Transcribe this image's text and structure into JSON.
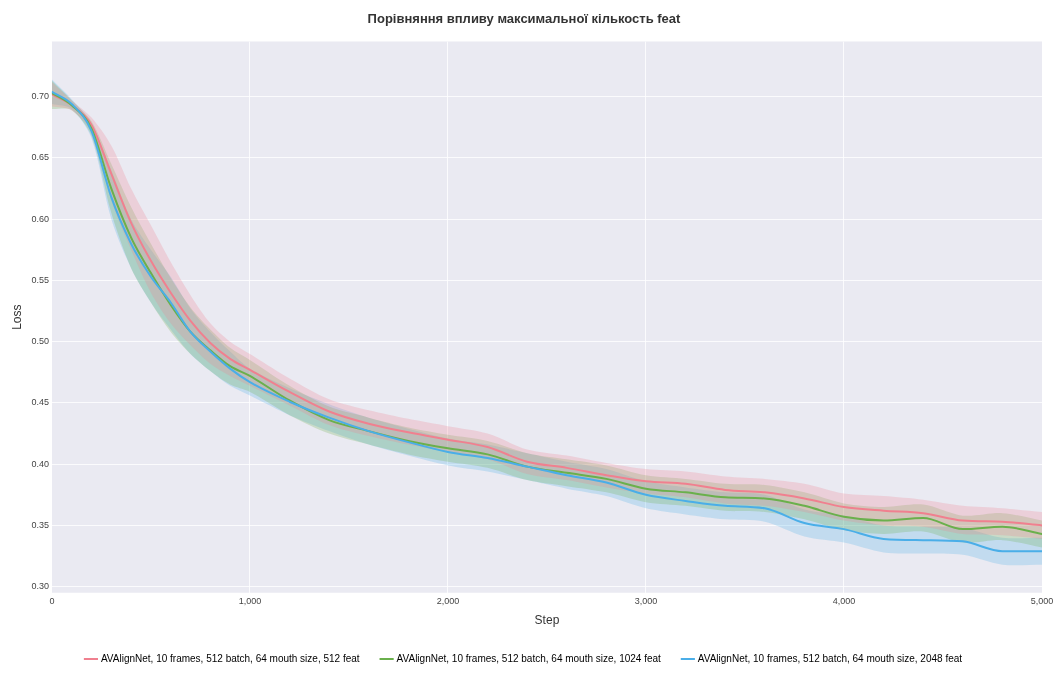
{
  "chart_data": {
    "type": "line",
    "title": "Порівняння впливу максимальної кількость feat",
    "xlabel": "Step",
    "ylabel": "Loss",
    "x": [
      0,
      100,
      200,
      300,
      400,
      500,
      600,
      700,
      800,
      900,
      1000,
      1200,
      1400,
      1600,
      1800,
      2000,
      2200,
      2400,
      2600,
      2800,
      3000,
      3200,
      3400,
      3600,
      3800,
      4000,
      4200,
      4400,
      4600,
      4800,
      5000
    ],
    "xlim": [
      0,
      5000
    ],
    "xticks": [
      0,
      {
        "value": 1000,
        "label": "1,000"
      },
      {
        "value": 2000,
        "label": "2,000"
      },
      {
        "value": 3000,
        "label": "3,000"
      },
      {
        "value": 4000,
        "label": "4,000"
      },
      {
        "value": 5000,
        "label": "5,000"
      }
    ],
    "ylim": [
      0.295,
      0.745
    ],
    "yticks": [
      {
        "value": 0.3,
        "label": "0.30"
      },
      {
        "value": 0.35,
        "label": "0.35"
      },
      {
        "value": 0.4,
        "label": "0.40"
      },
      {
        "value": 0.45,
        "label": "0.45"
      },
      {
        "value": 0.5,
        "label": "0.50"
      },
      {
        "value": 0.55,
        "label": "0.55"
      },
      {
        "value": 0.6,
        "label": "0.60"
      },
      {
        "value": 0.65,
        "label": "0.65"
      },
      {
        "value": 0.7,
        "label": "0.70"
      }
    ],
    "grid": true,
    "legend": "bottom",
    "marker": "none",
    "line_style": "solid",
    "series": [
      {
        "name": "AVAlignNet, 10 frames, 512 batch, 64 mouth size, 512 feat",
        "color": "#f0808f",
        "values": [
          0.702,
          0.693,
          0.677,
          0.637,
          0.597,
          0.566,
          0.54,
          0.517,
          0.499,
          0.486,
          0.477,
          0.459,
          0.443,
          0.433,
          0.426,
          0.42,
          0.414,
          0.402,
          0.397,
          0.391,
          0.386,
          0.384,
          0.379,
          0.377,
          0.372,
          0.365,
          0.362,
          0.36,
          0.354,
          0.353,
          0.35
        ],
        "upper": [
          0.712,
          0.697,
          0.683,
          0.66,
          0.625,
          0.595,
          0.565,
          0.538,
          0.515,
          0.5,
          0.49,
          0.47,
          0.453,
          0.444,
          0.437,
          0.431,
          0.425,
          0.412,
          0.407,
          0.401,
          0.396,
          0.394,
          0.39,
          0.388,
          0.384,
          0.376,
          0.374,
          0.371,
          0.366,
          0.364,
          0.361
        ],
        "lower": [
          0.692,
          0.689,
          0.671,
          0.615,
          0.575,
          0.54,
          0.515,
          0.497,
          0.482,
          0.472,
          0.464,
          0.448,
          0.432,
          0.423,
          0.416,
          0.41,
          0.404,
          0.392,
          0.387,
          0.381,
          0.376,
          0.373,
          0.368,
          0.366,
          0.361,
          0.354,
          0.35,
          0.349,
          0.343,
          0.342,
          0.339
        ]
      },
      {
        "name": "AVAlignNet, 10 frames, 512 batch, 64 mouth size, 1024 feat",
        "color": "#6ab04c",
        "values": [
          0.703,
          0.693,
          0.674,
          0.625,
          0.585,
          0.556,
          0.53,
          0.508,
          0.493,
          0.48,
          0.472,
          0.452,
          0.436,
          0.427,
          0.419,
          0.413,
          0.408,
          0.398,
          0.393,
          0.388,
          0.38,
          0.377,
          0.373,
          0.372,
          0.366,
          0.357,
          0.354,
          0.356,
          0.347,
          0.349,
          0.343
        ],
        "upper": [
          0.713,
          0.697,
          0.68,
          0.645,
          0.61,
          0.58,
          0.552,
          0.528,
          0.51,
          0.495,
          0.485,
          0.464,
          0.447,
          0.438,
          0.43,
          0.424,
          0.419,
          0.409,
          0.404,
          0.399,
          0.391,
          0.388,
          0.384,
          0.383,
          0.377,
          0.368,
          0.365,
          0.367,
          0.358,
          0.36,
          0.354
        ],
        "lower": [
          0.69,
          0.689,
          0.668,
          0.605,
          0.56,
          0.532,
          0.508,
          0.49,
          0.476,
          0.465,
          0.459,
          0.44,
          0.425,
          0.416,
          0.408,
          0.402,
          0.397,
          0.387,
          0.382,
          0.377,
          0.369,
          0.366,
          0.362,
          0.361,
          0.355,
          0.346,
          0.343,
          0.345,
          0.336,
          0.338,
          0.332
        ]
      },
      {
        "name": "AVAlignNet, 10 frames, 512 batch, 64 mouth size, 2048 feat",
        "color": "#4aaee8",
        "values": [
          0.704,
          0.694,
          0.672,
          0.618,
          0.58,
          0.553,
          0.532,
          0.508,
          0.492,
          0.478,
          0.467,
          0.451,
          0.438,
          0.427,
          0.418,
          0.41,
          0.405,
          0.398,
          0.391,
          0.385,
          0.375,
          0.37,
          0.366,
          0.364,
          0.352,
          0.347,
          0.339,
          0.338,
          0.337,
          0.329,
          0.329
        ],
        "upper": [
          0.714,
          0.698,
          0.678,
          0.64,
          0.6,
          0.575,
          0.553,
          0.527,
          0.508,
          0.492,
          0.478,
          0.462,
          0.449,
          0.438,
          0.429,
          0.421,
          0.416,
          0.409,
          0.402,
          0.396,
          0.386,
          0.381,
          0.377,
          0.375,
          0.363,
          0.358,
          0.35,
          0.349,
          0.348,
          0.34,
          0.34
        ],
        "lower": [
          0.694,
          0.69,
          0.666,
          0.6,
          0.56,
          0.532,
          0.51,
          0.49,
          0.476,
          0.464,
          0.456,
          0.44,
          0.427,
          0.416,
          0.407,
          0.399,
          0.394,
          0.387,
          0.38,
          0.374,
          0.364,
          0.359,
          0.355,
          0.353,
          0.341,
          0.336,
          0.328,
          0.327,
          0.326,
          0.318,
          0.318
        ]
      }
    ]
  }
}
